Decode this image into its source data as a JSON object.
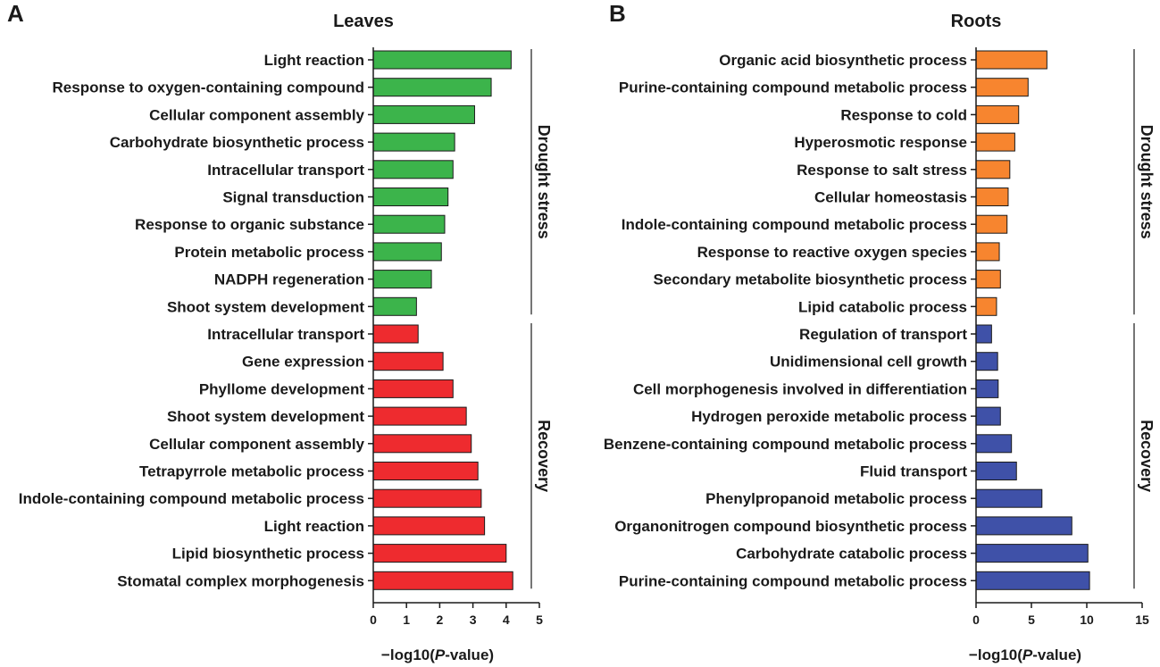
{
  "figure": {
    "letters": [
      "A",
      "B"
    ]
  },
  "chart_data": [
    {
      "type": "bar",
      "orientation": "horizontal",
      "title": "Leaves",
      "xlabel_prefix": "−log10(",
      "xlabel_italic": "P",
      "xlabel_suffix": "-value)",
      "xlim": [
        0,
        5
      ],
      "xticks": [
        0,
        1,
        2,
        3,
        4,
        5
      ],
      "groups": [
        {
          "name": "Drought stress",
          "color": "#3cb44b",
          "categories": [
            "Light reaction",
            "Response to oxygen-containing compound",
            "Cellular component assembly",
            "Carbohydrate biosynthetic process",
            "Intracellular transport",
            "Signal transduction",
            "Response to organic substance",
            "Protein metabolic process",
            "NADPH regeneration",
            "Shoot system development"
          ],
          "values": [
            4.15,
            3.55,
            3.05,
            2.45,
            2.4,
            2.25,
            2.15,
            2.05,
            1.75,
            1.3
          ]
        },
        {
          "name": "Recovery",
          "color": "#ee2b2f",
          "categories": [
            "Intracellular transport",
            "Gene expression",
            "Phyllome development",
            "Shoot system development",
            "Cellular component assembly",
            "Tetrapyrrole metabolic process",
            "Indole-containing compound metabolic process",
            "Light reaction",
            "Lipid biosynthetic process",
            "Stomatal complex morphogenesis"
          ],
          "values": [
            1.35,
            2.1,
            2.4,
            2.8,
            2.95,
            3.15,
            3.25,
            3.35,
            4.0,
            4.2
          ]
        }
      ]
    },
    {
      "type": "bar",
      "orientation": "horizontal",
      "title": "Roots",
      "xlabel_prefix": "−log10(",
      "xlabel_italic": "P",
      "xlabel_suffix": "-value)",
      "xlim": [
        0,
        15
      ],
      "xticks": [
        0,
        5,
        10,
        15
      ],
      "groups": [
        {
          "name": "Drought stress",
          "color": "#f7852f",
          "categories": [
            "Organic acid biosynthetic process",
            "Purine-containing compound metabolic process",
            "Response to cold",
            "Hyperosmotic response",
            "Response to salt stress",
            "Cellular homeostasis",
            "Indole-containing compound metabolic process",
            "Response to reactive oxygen species",
            "Secondary metabolite biosynthetic process",
            "Lipid catabolic process"
          ],
          "values": [
            6.4,
            4.7,
            3.85,
            3.5,
            3.05,
            2.9,
            2.8,
            2.1,
            2.2,
            1.85
          ]
        },
        {
          "name": "Recovery",
          "color": "#3f51a8",
          "categories": [
            "Regulation of transport",
            "Unidimensional cell growth",
            "Cell morphogenesis involved in differentiation",
            "Hydrogen peroxide metabolic process",
            "Benzene-containing compound metabolic process",
            "Fluid transport",
            "Phenylpropanoid metabolic process",
            "Organonitrogen compound biosynthetic process",
            "Carbohydrate catabolic process",
            "Purine-containing compound metabolic process"
          ],
          "values": [
            1.4,
            1.95,
            2.0,
            2.2,
            3.2,
            3.65,
            5.95,
            8.65,
            10.1,
            10.25
          ]
        }
      ]
    }
  ]
}
